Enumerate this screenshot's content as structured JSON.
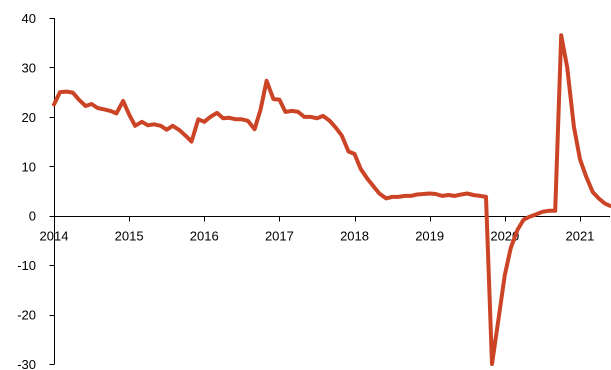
{
  "chart_data": {
    "type": "line",
    "title": "",
    "xlabel": "",
    "ylabel": "",
    "xlim": [
      2014.0,
      2021.4
    ],
    "ylim": [
      -30,
      40
    ],
    "x_ticks": [
      2014,
      2015,
      2016,
      2017,
      2018,
      2019,
      2020,
      2021
    ],
    "x_tick_labels": [
      "2014",
      "2015",
      "2016",
      "2017",
      "2018",
      "2019",
      "2020",
      "2021"
    ],
    "y_ticks": [
      40,
      30,
      20,
      10,
      0,
      -10,
      -20,
      -30
    ],
    "y_tick_labels": [
      "40",
      "30",
      "20",
      "10",
      "0",
      "-10",
      "-20",
      "-30"
    ],
    "grid": false,
    "legend": "none",
    "colors": {
      "line": "#cc4426",
      "axis": "#000000"
    },
    "series": [
      {
        "x": [
          2014.0,
          2014.08,
          2014.17,
          2014.25,
          2014.33,
          2014.42,
          2014.5,
          2014.58,
          2014.67,
          2014.75,
          2014.83,
          2014.92,
          2015.0,
          2015.08,
          2015.17,
          2015.25,
          2015.33,
          2015.42,
          2015.5,
          2015.58,
          2015.67,
          2015.75,
          2015.83,
          2015.92,
          2016.0,
          2016.08,
          2016.17,
          2016.25,
          2016.33,
          2016.42,
          2016.5,
          2016.58,
          2016.67,
          2016.75,
          2016.83,
          2016.92,
          2017.0,
          2017.08,
          2017.17,
          2017.25,
          2017.33,
          2017.42,
          2017.5,
          2017.58,
          2017.67,
          2017.75,
          2017.83,
          2017.92,
          2018.0,
          2018.08,
          2018.17,
          2018.25,
          2018.33,
          2018.42,
          2018.5,
          2018.58,
          2018.67,
          2018.75,
          2018.83,
          2018.92,
          2019.0,
          2019.08,
          2019.17,
          2019.25,
          2019.33,
          2019.42,
          2019.5,
          2019.58,
          2019.67,
          2019.75,
          2019.83,
          2019.92,
          2020.0,
          2020.08,
          2020.17,
          2020.25,
          2020.33,
          2020.42,
          2020.5,
          2020.58,
          2020.67,
          2020.75,
          2020.83,
          2020.92,
          2021.0,
          2021.08,
          2021.17,
          2021.25,
          2021.33,
          2021.4
        ],
        "values": [
          22.5,
          25.0,
          25.1,
          24.9,
          23.5,
          22.2,
          22.6,
          21.8,
          21.5,
          21.2,
          20.7,
          23.2,
          20.5,
          18.2,
          19.0,
          18.3,
          18.5,
          18.2,
          17.4,
          18.2,
          17.3,
          16.2,
          15.0,
          19.5,
          19.0,
          20.0,
          20.8,
          19.7,
          19.8,
          19.5,
          19.5,
          19.2,
          17.5,
          21.5,
          27.3,
          23.6,
          23.5,
          21.0,
          21.2,
          21.0,
          20.0,
          20.0,
          19.7,
          20.2,
          19.2,
          17.8,
          16.2,
          13.0,
          12.5,
          9.5,
          7.5,
          6.0,
          4.5,
          3.5,
          3.8,
          3.8,
          4.0,
          4.0,
          4.3,
          4.4,
          4.5,
          4.4,
          4.0,
          4.2,
          4.0,
          4.3,
          4.5,
          4.2,
          4.0,
          3.8,
          -30.0,
          -20.5,
          -12.0,
          -6.5,
          -2.8,
          -0.8,
          -0.2,
          0.3,
          0.8,
          1.0,
          1.0,
          36.5,
          30.0,
          18.0,
          11.5,
          8.0,
          4.8,
          3.5,
          2.5,
          2.0
        ]
      }
    ]
  }
}
